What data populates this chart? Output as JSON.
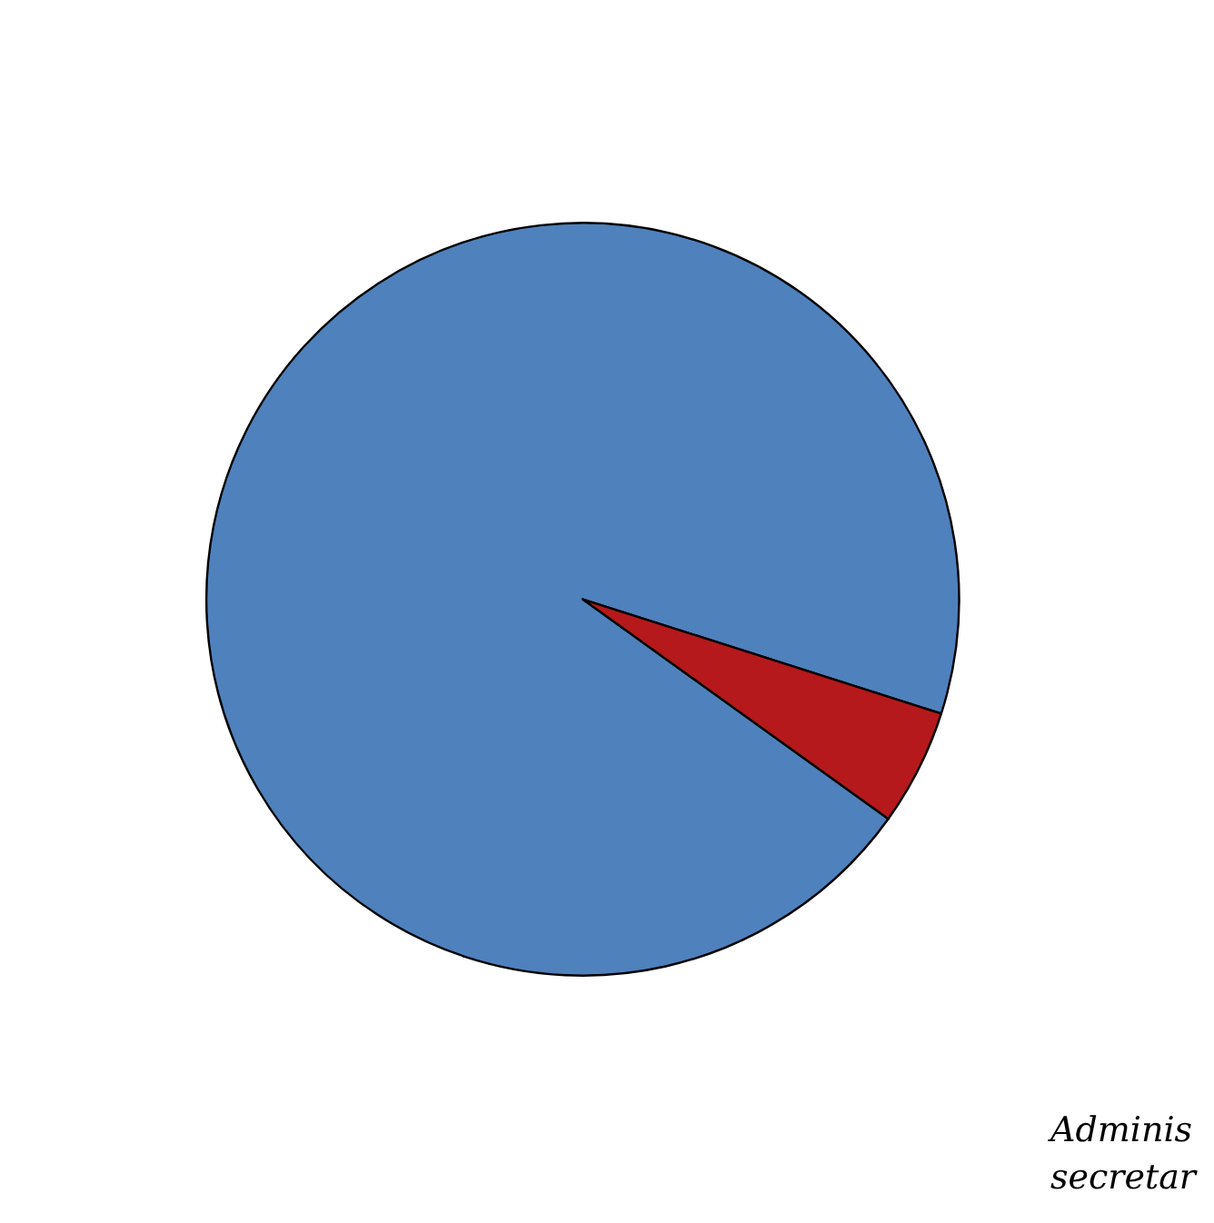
{
  "chart_data": {
    "type": "pie",
    "categories": [
      null,
      null
    ],
    "values": [
      95,
      5
    ],
    "colors": [
      "#4f81bd",
      "#b5191c"
    ],
    "annotations": [
      "Adminis\nsecretar"
    ]
  }
}
